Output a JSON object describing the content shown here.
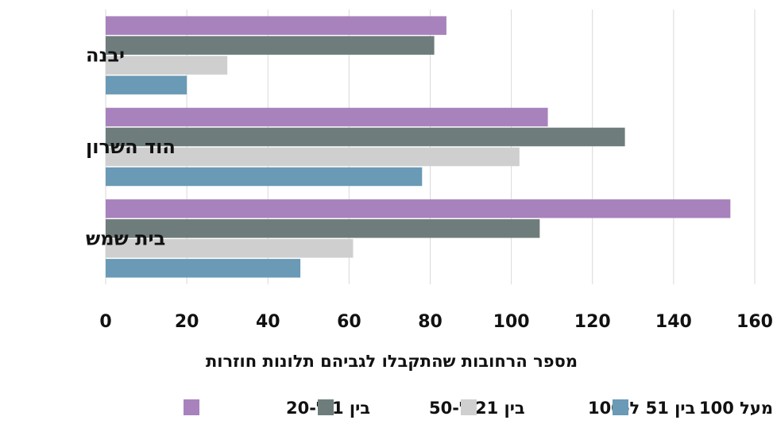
{
  "chart_data": {
    "type": "bar",
    "orientation": "horizontal",
    "categories": [
      "יבנה",
      "הוד השרון",
      "בית שמש"
    ],
    "series": [
      {
        "name": "בין 1 ל-20",
        "color": "#a882bc",
        "values": [
          84,
          109,
          154
        ]
      },
      {
        "name": "בין 21 ל-50",
        "color": "#6e7d7b",
        "values": [
          81,
          128,
          107
        ]
      },
      {
        "name": "בין 51 ל-100",
        "color": "#cfcfcf",
        "values": [
          30,
          102,
          61
        ]
      },
      {
        "name": "מעל 100",
        "color": "#6a9ab5",
        "values": [
          20,
          78,
          48
        ]
      }
    ],
    "xlabel": "מספר הרחובות שהתקבלו לגביהם תלונות חוזרות",
    "ylabel": "",
    "xlim": [
      0,
      160
    ],
    "xticks": [
      0,
      20,
      40,
      60,
      80,
      100,
      120,
      140,
      160
    ],
    "grid": true,
    "legend_position": "bottom"
  }
}
